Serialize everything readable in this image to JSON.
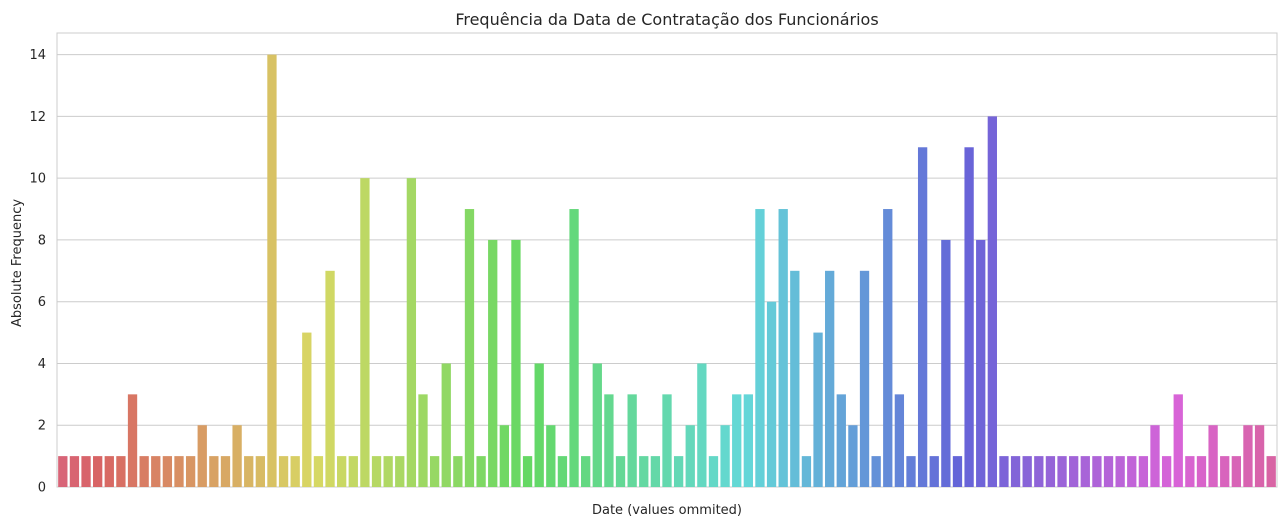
{
  "chart_data": {
    "type": "bar",
    "title": "Frequência da Data de Contratação dos Funcionários",
    "xlabel": "Date (values ommited)",
    "ylabel": "Absolute Frequency",
    "ylim": [
      0,
      14.7
    ],
    "yticks": [
      0,
      2,
      4,
      6,
      8,
      10,
      12,
      14
    ],
    "x_tick_labels_shown": false,
    "grid": "horizontal",
    "legend": "none",
    "palette": "husl",
    "values": [
      1,
      1,
      1,
      1,
      1,
      1,
      3,
      1,
      1,
      1,
      1,
      1,
      2,
      1,
      1,
      2,
      1,
      1,
      14,
      1,
      1,
      5,
      1,
      7,
      1,
      1,
      10,
      1,
      1,
      1,
      10,
      3,
      1,
      4,
      1,
      9,
      1,
      8,
      2,
      8,
      1,
      4,
      2,
      1,
      9,
      1,
      4,
      3,
      1,
      3,
      1,
      1,
      3,
      1,
      2,
      4,
      1,
      2,
      3,
      3,
      9,
      6,
      9,
      7,
      1,
      5,
      7,
      3,
      2,
      7,
      1,
      9,
      3,
      1,
      11,
      1,
      8,
      1,
      11,
      8,
      12,
      1,
      1,
      1,
      1,
      1,
      1,
      1,
      1,
      1,
      1,
      1,
      1,
      1,
      2,
      1,
      3,
      1,
      1,
      2,
      1,
      1,
      2,
      2,
      1
    ]
  }
}
